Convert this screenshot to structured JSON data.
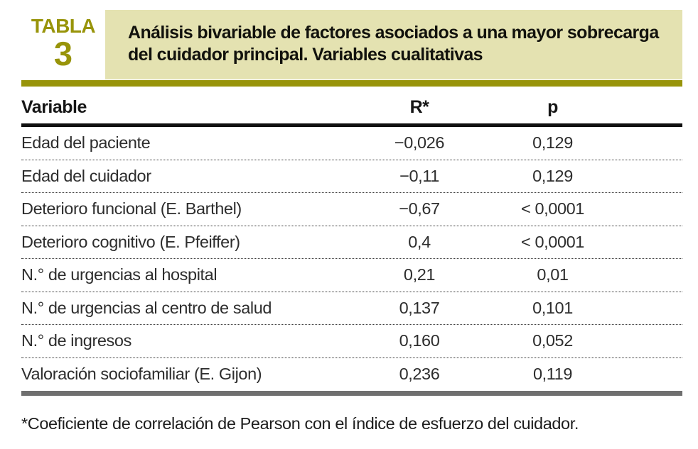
{
  "label": {
    "word": "TABLA",
    "number": "3"
  },
  "title": {
    "line1": "Análisis bivariable de factores asociados a una mayor sobrecarga",
    "line2": "del cuidador principal. Variables cualitativas"
  },
  "columns": [
    "Variable",
    "R*",
    "p"
  ],
  "rows": [
    {
      "variable": "Edad del paciente",
      "r": "−0,026",
      "p": "0,129"
    },
    {
      "variable": "Edad del cuidador",
      "r": "−0,11",
      "p": "0,129"
    },
    {
      "variable": "Deterioro funcional (E. Barthel)",
      "r": "−0,67",
      "p": "< 0,0001"
    },
    {
      "variable": "Deterioro cognitivo (E. Pfeiffer)",
      "r": "0,4",
      "p": "< 0,0001"
    },
    {
      "variable": "N.° de urgencias al hospital",
      "r": "0,21",
      "p": "0,01"
    },
    {
      "variable": "N.° de urgencias al centro de salud",
      "r": "0,137",
      "p": "0,101"
    },
    {
      "variable": "N.° de ingresos",
      "r": "0,160",
      "p": "0,052"
    },
    {
      "variable": "Valoración sociofamiliar (E. Gijon)",
      "r": "0,236",
      "p": "0,119"
    }
  ],
  "footnote": "*Coeficiente de correlación de Pearson con el índice de esfuerzo del cuidador.",
  "colors": {
    "accent_olive": "#98940a",
    "band_background": "#e4e2b1",
    "header_rule": "#101010",
    "bottom_bar": "#6f6f6f"
  },
  "chart_data": {
    "type": "table",
    "title": "Análisis bivariable de factores asociados a una mayor sobrecarga del cuidador principal. Variables cualitativas",
    "columns": [
      "Variable",
      "R*",
      "p"
    ],
    "rows": [
      [
        "Edad del paciente",
        "−0,026",
        "0,129"
      ],
      [
        "Edad del cuidador",
        "−0,11",
        "0,129"
      ],
      [
        "Deterioro funcional (E. Barthel)",
        "−0,67",
        "< 0,0001"
      ],
      [
        "Deterioro cognitivo (E. Pfeiffer)",
        "0,4",
        "< 0,0001"
      ],
      [
        "N.° de urgencias al hospital",
        "0,21",
        "0,01"
      ],
      [
        "N.° de urgencias al centro de salud",
        "0,137",
        "0,101"
      ],
      [
        "N.° de ingresos",
        "0,160",
        "0,052"
      ],
      [
        "Valoración sociofamiliar (E. Gijon)",
        "0,236",
        "0,119"
      ]
    ],
    "footnote": "*Coeficiente de correlación de Pearson con el índice de esfuerzo del cuidador."
  }
}
